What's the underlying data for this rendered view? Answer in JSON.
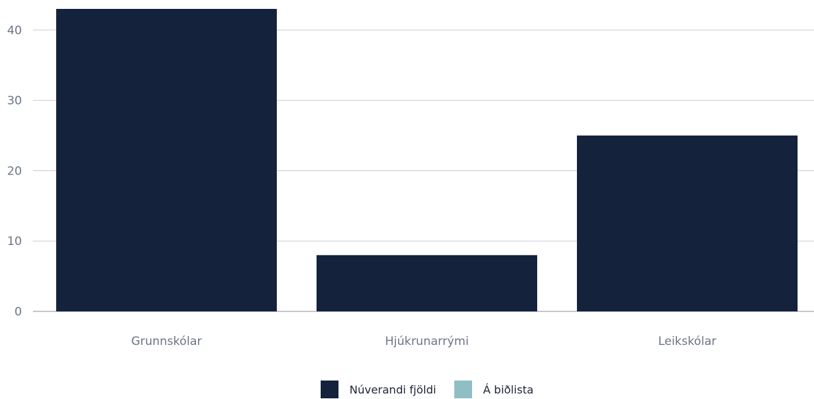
{
  "chart_data": {
    "type": "bar",
    "categories": [
      "Grunnskólar",
      "Hjúkrunarrými",
      "Leikskólar"
    ],
    "series": [
      {
        "name": "Núverandi fjöldi",
        "values": [
          43,
          8,
          25
        ],
        "color": "#14223b"
      },
      {
        "name": "Á biðlista",
        "values": [
          0,
          0,
          0
        ],
        "color": "#8fbfc4"
      }
    ],
    "yticks": [
      0,
      10,
      20,
      30,
      40
    ],
    "ylim": [
      0,
      43
    ],
    "grid": true,
    "legend": "bottom-center"
  }
}
